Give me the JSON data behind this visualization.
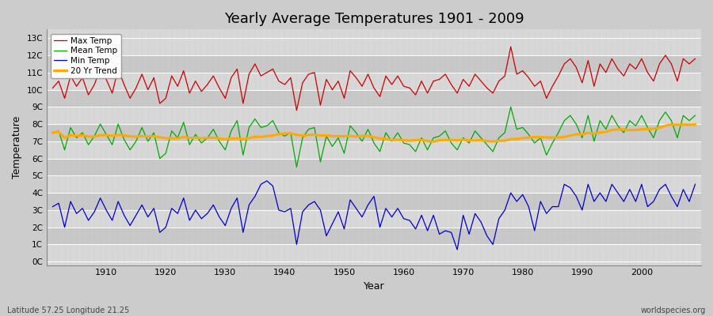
{
  "title": "Yearly Average Temperatures 1901 - 2009",
  "xlabel": "Year",
  "ylabel": "Temperature",
  "subtitle_left": "Latitude 57.25 Longitude 21.25",
  "subtitle_right": "worldspecies.org",
  "years_start": 1901,
  "years_end": 2009,
  "yticks": [
    0,
    1,
    2,
    3,
    4,
    5,
    6,
    7,
    8,
    9,
    10,
    11,
    12,
    13
  ],
  "ytick_labels": [
    "0C",
    "1C",
    "2C",
    "3C",
    "4C",
    "5C",
    "6C",
    "7C",
    "8C",
    "9C",
    "10C",
    "11C",
    "12C",
    "13C"
  ],
  "ylim": [
    -0.2,
    13.5
  ],
  "xlim": [
    1900,
    2010
  ],
  "colors": {
    "max_temp": "#cc0000",
    "mean_temp": "#00aa00",
    "min_temp": "#0000cc",
    "trend": "#ffaa00",
    "fig_bg": "#cccccc",
    "plot_bg_light": "#d8d8d8",
    "plot_bg_dark": "#c8c8c8",
    "grid_v": "#bbbbbb",
    "grid_h": "#ffffff"
  },
  "legend": {
    "max_temp": "Max Temp",
    "mean_temp": "Mean Temp",
    "min_temp": "Min Temp",
    "trend": "20 Yr Trend"
  },
  "max_temp": [
    10.1,
    10.5,
    9.5,
    10.8,
    10.2,
    10.7,
    9.7,
    10.3,
    11.2,
    10.6,
    9.8,
    11.2,
    10.3,
    9.5,
    10.1,
    10.9,
    10.0,
    10.7,
    9.2,
    9.5,
    10.8,
    10.2,
    11.1,
    9.8,
    10.5,
    9.9,
    10.3,
    10.8,
    10.1,
    9.5,
    10.7,
    11.2,
    9.2,
    10.9,
    11.5,
    10.8,
    11.0,
    11.2,
    10.5,
    10.3,
    10.7,
    8.8,
    10.4,
    10.9,
    11.0,
    9.1,
    10.6,
    10.0,
    10.5,
    9.5,
    11.1,
    10.7,
    10.2,
    10.9,
    10.1,
    9.6,
    10.8,
    10.3,
    10.8,
    10.2,
    10.1,
    9.7,
    10.5,
    9.8,
    10.5,
    10.6,
    10.9,
    10.3,
    9.8,
    10.6,
    10.2,
    10.9,
    10.5,
    10.1,
    9.8,
    10.5,
    10.8,
    12.5,
    10.9,
    11.1,
    10.7,
    10.2,
    10.5,
    9.5,
    10.2,
    10.8,
    11.5,
    11.8,
    11.3,
    10.4,
    11.7,
    10.2,
    11.5,
    11.0,
    11.8,
    11.2,
    10.8,
    11.5,
    11.2,
    11.8,
    11.0,
    10.5,
    11.5,
    12.0,
    11.5,
    10.5,
    11.8,
    11.5,
    11.8
  ],
  "mean_temp": [
    7.5,
    7.6,
    6.5,
    7.8,
    7.2,
    7.5,
    6.8,
    7.3,
    8.0,
    7.4,
    6.8,
    8.0,
    7.1,
    6.5,
    7.0,
    7.8,
    7.0,
    7.5,
    6.0,
    6.3,
    7.6,
    7.2,
    8.1,
    6.8,
    7.4,
    6.9,
    7.2,
    7.7,
    7.0,
    6.5,
    7.6,
    8.2,
    6.2,
    7.8,
    8.3,
    7.8,
    7.9,
    8.2,
    7.5,
    7.3,
    7.5,
    5.5,
    7.2,
    7.7,
    7.8,
    5.8,
    7.3,
    6.7,
    7.2,
    6.3,
    7.9,
    7.5,
    7.0,
    7.7,
    6.9,
    6.4,
    7.5,
    7.0,
    7.5,
    6.9,
    6.8,
    6.4,
    7.2,
    6.5,
    7.2,
    7.3,
    7.6,
    6.9,
    6.5,
    7.2,
    6.9,
    7.6,
    7.2,
    6.8,
    6.4,
    7.2,
    7.5,
    9.0,
    7.7,
    7.8,
    7.4,
    6.9,
    7.2,
    6.2,
    6.9,
    7.5,
    8.2,
    8.5,
    8.0,
    7.2,
    8.5,
    7.0,
    8.2,
    7.7,
    8.5,
    7.9,
    7.5,
    8.2,
    7.9,
    8.5,
    7.8,
    7.2,
    8.2,
    8.7,
    8.2,
    7.2,
    8.5,
    8.2,
    8.5
  ],
  "min_temp": [
    3.2,
    3.4,
    2.0,
    3.5,
    2.8,
    3.1,
    2.4,
    2.9,
    3.7,
    3.0,
    2.4,
    3.5,
    2.7,
    2.1,
    2.7,
    3.3,
    2.6,
    3.1,
    1.7,
    2.0,
    3.1,
    2.8,
    3.7,
    2.4,
    3.0,
    2.5,
    2.8,
    3.3,
    2.6,
    2.1,
    3.1,
    3.7,
    1.7,
    3.3,
    3.8,
    4.5,
    4.7,
    4.4,
    3.0,
    2.9,
    3.1,
    1.0,
    2.9,
    3.3,
    3.5,
    3.0,
    1.5,
    2.2,
    2.9,
    1.9,
    3.6,
    3.1,
    2.6,
    3.3,
    3.8,
    2.0,
    3.1,
    2.6,
    3.1,
    2.5,
    2.4,
    1.9,
    2.7,
    1.8,
    2.7,
    1.6,
    1.8,
    1.7,
    0.7,
    2.7,
    1.6,
    2.8,
    2.3,
    1.5,
    1.0,
    2.5,
    3.0,
    4.0,
    3.5,
    3.9,
    3.2,
    1.8,
    3.5,
    2.8,
    3.2,
    3.2,
    4.5,
    4.3,
    3.8,
    3.0,
    4.5,
    3.5,
    4.0,
    3.5,
    4.5,
    4.0,
    3.5,
    4.2,
    3.5,
    4.5,
    3.2,
    3.5,
    4.2,
    4.5,
    3.8,
    3.2,
    4.2,
    3.5,
    4.5
  ],
  "xtick_years": [
    1910,
    1920,
    1930,
    1940,
    1950,
    1960,
    1970,
    1980,
    1990,
    2000
  ]
}
